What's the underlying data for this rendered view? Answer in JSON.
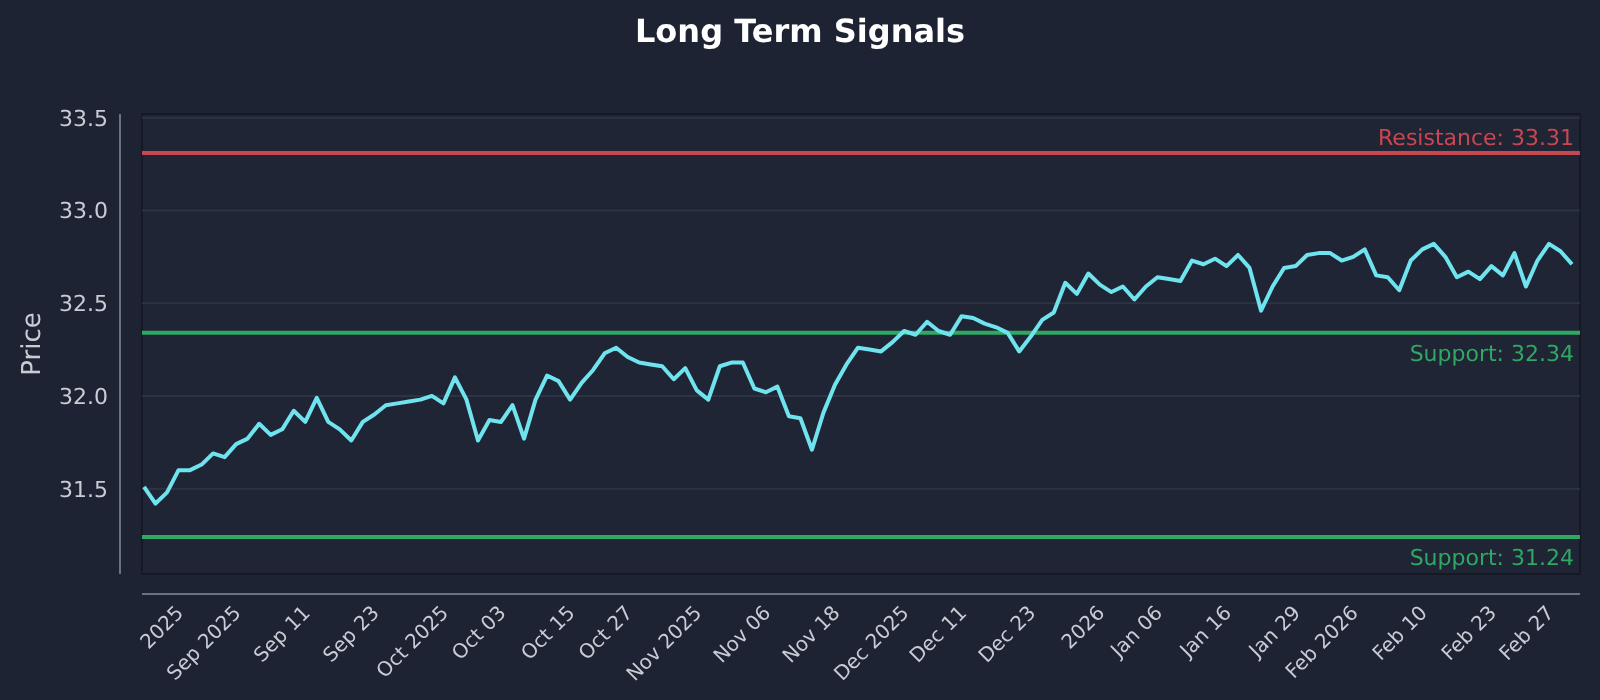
{
  "chart_data": {
    "type": "line",
    "title": "Long Term Signals",
    "ylabel": "Price",
    "categories": [
      null,
      null,
      null,
      "2025",
      null,
      null,
      null,
      null,
      "Sep 2025",
      null,
      null,
      null,
      null,
      null,
      "Sep 11",
      null,
      null,
      null,
      null,
      null,
      "Sep 23",
      null,
      null,
      null,
      null,
      null,
      "Oct 2025",
      null,
      null,
      null,
      null,
      "Oct 03",
      null,
      null,
      null,
      null,
      null,
      "Oct 15",
      null,
      null,
      null,
      null,
      "Oct 27",
      null,
      null,
      null,
      null,
      null,
      "Nov 2025",
      null,
      null,
      null,
      null,
      null,
      "Nov 06",
      null,
      null,
      null,
      null,
      null,
      "Nov 18",
      null,
      null,
      null,
      null,
      null,
      "Dec 2025",
      null,
      null,
      null,
      null,
      "Dec 11",
      null,
      null,
      null,
      null,
      null,
      "Dec 23",
      null,
      null,
      null,
      null,
      null,
      "2026",
      null,
      null,
      null,
      null,
      "Jan 06",
      null,
      null,
      null,
      null,
      null,
      "Jan 16",
      null,
      null,
      null,
      null,
      null,
      "Jan 29",
      null,
      null,
      null,
      null,
      "Feb 2026",
      null,
      null,
      null,
      null,
      null,
      "Feb 10",
      null,
      null,
      null,
      null,
      null,
      "Feb 23",
      null,
      null,
      null,
      null,
      "Feb 27",
      null,
      null
    ],
    "series": [
      {
        "color": "#6fe3ee",
        "values": [
          31.51,
          31.42,
          31.48,
          31.6,
          31.6,
          31.63,
          31.69,
          31.67,
          31.74,
          31.77,
          31.85,
          31.79,
          31.82,
          31.92,
          31.86,
          31.99,
          31.86,
          31.82,
          31.76,
          31.86,
          31.9,
          31.95,
          31.96,
          31.97,
          31.98,
          32.0,
          31.96,
          32.1,
          31.98,
          31.76,
          31.87,
          31.86,
          31.95,
          31.77,
          31.98,
          32.11,
          32.08,
          31.98,
          32.07,
          32.14,
          32.23,
          32.26,
          32.21,
          32.18,
          32.17,
          32.16,
          32.09,
          32.15,
          32.03,
          31.98,
          32.16,
          32.18,
          32.18,
          32.04,
          32.02,
          32.05,
          31.89,
          31.88,
          31.71,
          31.91,
          32.06,
          32.17,
          32.26,
          32.25,
          32.24,
          32.29,
          32.35,
          32.33,
          32.4,
          32.35,
          32.33,
          32.43,
          32.42,
          32.39,
          32.37,
          32.34,
          32.24,
          32.32,
          32.41,
          32.45,
          32.61,
          32.55,
          32.66,
          32.6,
          32.56,
          32.59,
          32.52,
          32.59,
          32.64,
          32.63,
          32.62,
          32.73,
          32.71,
          32.74,
          32.7,
          32.76,
          32.69,
          32.46,
          32.59,
          32.69,
          32.7,
          32.76,
          32.77,
          32.77,
          32.73,
          32.75,
          32.79,
          32.65,
          32.64,
          32.57,
          32.73,
          32.79,
          32.82,
          32.75,
          32.64,
          32.67,
          32.63,
          32.7,
          32.65,
          32.77,
          32.59,
          32.73,
          32.82,
          32.78,
          32.71
        ]
      }
    ],
    "ylim": [
      31.04,
      33.52
    ],
    "yticks": [
      {
        "value": 31.5,
        "label": "31.5"
      },
      {
        "value": 32,
        "label": "32.0"
      },
      {
        "value": 32.5,
        "label": "32.5"
      },
      {
        "value": 33,
        "label": "33.0"
      },
      {
        "value": 33.5,
        "label": "33.5"
      }
    ],
    "grid": "y",
    "marker": "none",
    "line_style": "solid",
    "ref_lines": [
      {
        "axis": "y",
        "value": 33.31,
        "label": "Resistance: 33.31",
        "color": "#c9474f"
      },
      {
        "axis": "y",
        "value": 32.34,
        "label": "Support: 32.34",
        "color": "#2ea862"
      },
      {
        "axis": "y",
        "value": 31.24,
        "label": "Support: 31.24",
        "color": "#2ea862"
      }
    ]
  }
}
